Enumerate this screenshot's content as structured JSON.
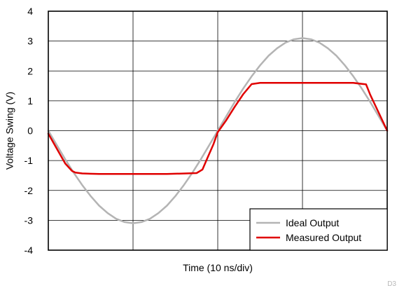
{
  "chart_data": {
    "type": "line",
    "title": "",
    "xlabel": "Time (10 ns/div)",
    "ylabel": "Voltage Swing (V)",
    "xlim": [
      0,
      40
    ],
    "ylim": [
      -4,
      4
    ],
    "xgrid_step": 10,
    "yticks": [
      -4,
      -3,
      -2,
      -1,
      0,
      1,
      2,
      3,
      4
    ],
    "grid": true,
    "legend_position": "bottom-right",
    "series": [
      {
        "name": "Ideal Output",
        "color": "#b4b4b4",
        "x": [
          0,
          1,
          2,
          3,
          4,
          5,
          6,
          7,
          8,
          9,
          10,
          11,
          12,
          13,
          14,
          15,
          16,
          17,
          18,
          19,
          20,
          21,
          22,
          23,
          24,
          25,
          26,
          27,
          28,
          29,
          30,
          31,
          32,
          33,
          34,
          35,
          36,
          37,
          38,
          39,
          40
        ],
        "y": [
          0,
          -0.48,
          -0.96,
          -1.41,
          -1.82,
          -2.19,
          -2.51,
          -2.76,
          -2.95,
          -3.06,
          -3.1,
          -3.06,
          -2.95,
          -2.76,
          -2.51,
          -2.19,
          -1.82,
          -1.41,
          -0.96,
          -0.48,
          0,
          0.48,
          0.96,
          1.41,
          1.82,
          2.19,
          2.51,
          2.76,
          2.95,
          3.06,
          3.1,
          3.06,
          2.95,
          2.76,
          2.51,
          2.19,
          1.82,
          1.41,
          0.96,
          0.48,
          0
        ]
      },
      {
        "name": "Measured Output",
        "color": "#e00000",
        "x": [
          0,
          1,
          2,
          2.8,
          3.2,
          4,
          6,
          10,
          14,
          17.5,
          18.2,
          18.8,
          19.5,
          20,
          21,
          22,
          23,
          24,
          25,
          26,
          30,
          36,
          37.5,
          38,
          39,
          40
        ],
        "y": [
          -0.1,
          -0.6,
          -1.1,
          -1.35,
          -1.4,
          -1.43,
          -1.45,
          -1.45,
          -1.45,
          -1.42,
          -1.3,
          -0.9,
          -0.45,
          -0.05,
          0.35,
          0.8,
          1.22,
          1.56,
          1.6,
          1.6,
          1.6,
          1.6,
          1.55,
          1.2,
          0.6,
          0
        ]
      }
    ]
  },
  "corner_tag": "D3"
}
